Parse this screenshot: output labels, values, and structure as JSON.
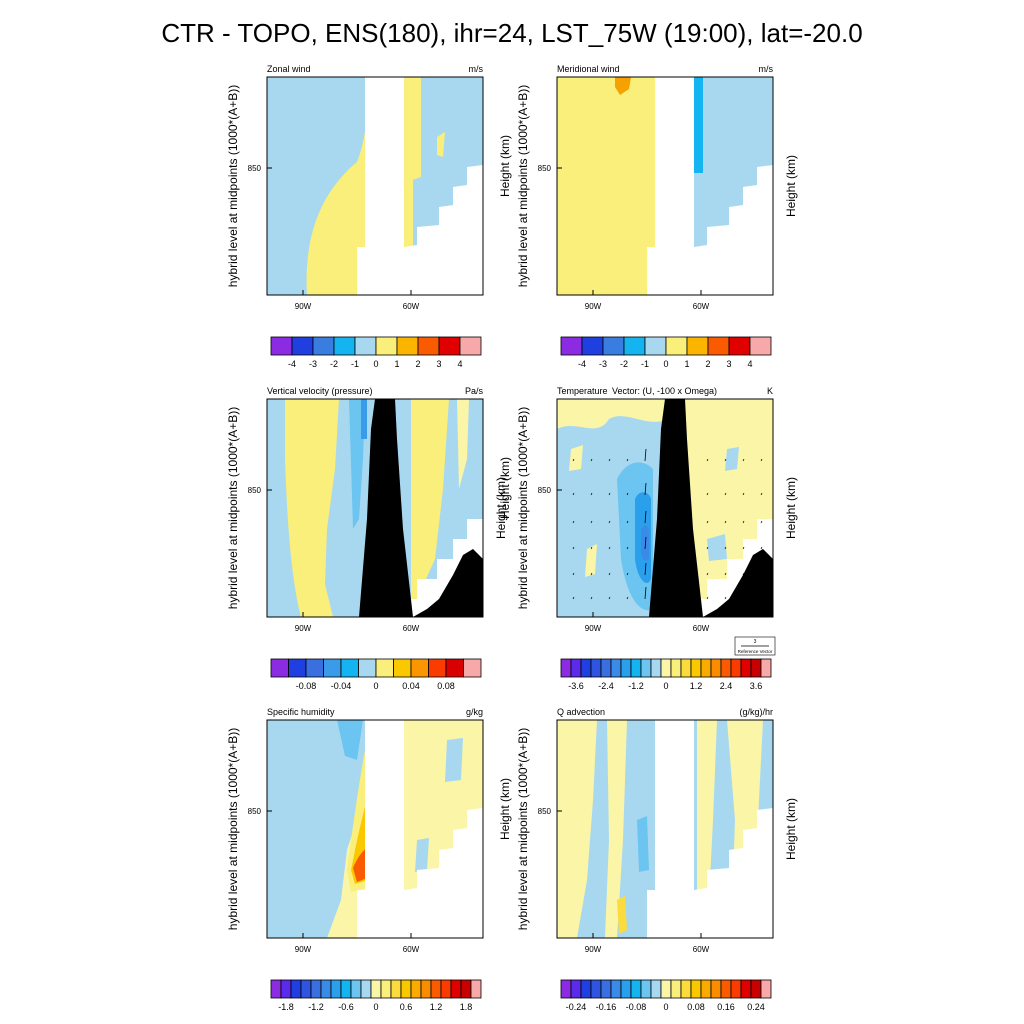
{
  "figure_title": "CTR - TOPO, ENS(180), ihr=24, LST_75W (19:00), lat=-20.0",
  "colors": {
    "light_blue": "#a8d8f0",
    "yellow": "#f9ef7a",
    "pale_yellow": "#fbf5a8",
    "topo_black": "#000000",
    "missing_white": "#ffffff"
  },
  "chart_data": [
    {
      "type": "heatmap",
      "title": "Zonal wind",
      "units": "m/s",
      "ylabel": "hybrid level at midpoints (1000*(A+B))",
      "ylabel_right": "",
      "y_tick_labels": [
        "850"
      ],
      "x_tick_labels": [
        "90W",
        "60W"
      ],
      "colorbar": {
        "fills": [
          "#8b2be2",
          "#1f3fe0",
          "#3a7de0",
          "#14b4f0",
          "#a8d8f0",
          "#f9ef7a",
          "#fbb400",
          "#fa5a00",
          "#e00000",
          "#f7a8a8"
        ],
        "labels": [
          "-4",
          "-3",
          "-2",
          "-1",
          "0",
          "1",
          "2",
          "3",
          "4"
        ]
      },
      "topography_fill": "white",
      "has_vectors": false
    },
    {
      "type": "heatmap",
      "title": "Meridional wind",
      "units": "m/s",
      "ylabel": "hybrid level at midpoints (1000*(A+B))",
      "ylabel_right": "Height (km)",
      "y_tick_labels": [
        "850"
      ],
      "x_tick_labels": [
        "90W",
        "60W"
      ],
      "colorbar": {
        "fills": [
          "#8b2be2",
          "#1f3fe0",
          "#3a7de0",
          "#14b4f0",
          "#a8d8f0",
          "#f9ef7a",
          "#fbb400",
          "#fa5a00",
          "#e00000",
          "#f7a8a8"
        ],
        "labels": [
          "-4",
          "-3",
          "-2",
          "-1",
          "0",
          "1",
          "2",
          "3",
          "4"
        ]
      },
      "topography_fill": "white",
      "has_vectors": false
    },
    {
      "type": "heatmap",
      "title": "Vertical velocity (pressure)",
      "units": "Pa/s",
      "ylabel": "hybrid level at midpoints (1000*(A+B))",
      "ylabel_right": "Height (km)",
      "y_tick_labels": [
        "850"
      ],
      "x_tick_labels": [
        "90W",
        "60W"
      ],
      "colorbar": {
        "fills": [
          "#8b2be2",
          "#1f3fe0",
          "#3a6fe0",
          "#3a9be8",
          "#14b4f0",
          "#a8d8f0",
          "#f9ef7a",
          "#fbc800",
          "#fb9600",
          "#fa3c00",
          "#d80000",
          "#f7a8a8"
        ],
        "labels": [
          "-0.08",
          "-0.04",
          "0",
          "0.04",
          "0.08"
        ]
      },
      "topography_fill": "black",
      "has_vectors": false
    },
    {
      "type": "heatmap",
      "title": "Temperature",
      "title2": "Vector: (U, -100 x Omega)",
      "units": "K",
      "ylabel": "hybrid level at midpoints (1000*(A+B))",
      "ylabel_right": "Height (km)",
      "y_tick_labels": [
        "850"
      ],
      "x_tick_labels": [
        "90W",
        "60W"
      ],
      "colorbar": {
        "fills": [
          "#8b2be2",
          "#5a2be8",
          "#1f3fe0",
          "#2f55e0",
          "#3a6fe0",
          "#3a8be8",
          "#2aa0ec",
          "#14b4f0",
          "#6cc4f0",
          "#a8d8f0",
          "#fbf5a8",
          "#f9ef7a",
          "#fbdc3c",
          "#fbc800",
          "#fbaa00",
          "#fb8c00",
          "#fa5a00",
          "#fa3c00",
          "#e00000",
          "#c80000",
          "#f7a8a8"
        ],
        "labels": [
          "-3.6",
          "-2.4",
          "-1.2",
          "0",
          "1.2",
          "2.4",
          "3.6"
        ]
      },
      "reference_vector": {
        "magnitude": "3",
        "label": "Reference Vector"
      },
      "topography_fill": "black",
      "has_vectors": true
    },
    {
      "type": "heatmap",
      "title": "Specific humidity",
      "units": "g/kg",
      "ylabel": "hybrid level at midpoints (1000*(A+B))",
      "ylabel_right": "",
      "y_tick_labels": [
        "850"
      ],
      "x_tick_labels": [
        "90W",
        "60W"
      ],
      "colorbar": {
        "fills": [
          "#8b2be2",
          "#5a2be8",
          "#1f3fe0",
          "#2f55e0",
          "#3a6fe0",
          "#3a8be8",
          "#2aa0ec",
          "#14b4f0",
          "#6cc4f0",
          "#a8d8f0",
          "#fbf5a8",
          "#f9ef7a",
          "#fbdc3c",
          "#fbc800",
          "#fbaa00",
          "#fb8c00",
          "#fa5a00",
          "#fa3c00",
          "#e00000",
          "#c80000",
          "#f7a8a8"
        ],
        "labels": [
          "-1.8",
          "-1.2",
          "-0.6",
          "0",
          "0.6",
          "1.2",
          "1.8"
        ]
      },
      "topography_fill": "white",
      "has_vectors": false
    },
    {
      "type": "heatmap",
      "title": "Q advection",
      "units": "(g/kg)/hr",
      "ylabel": "hybrid level at midpoints (1000*(A+B))",
      "ylabel_right": "Height (km)",
      "y_tick_labels": [
        "850"
      ],
      "x_tick_labels": [
        "90W",
        "60W"
      ],
      "colorbar": {
        "fills": [
          "#8b2be2",
          "#5a2be8",
          "#1f3fe0",
          "#2f55e0",
          "#3a6fe0",
          "#3a8be8",
          "#2aa0ec",
          "#14b4f0",
          "#6cc4f0",
          "#a8d8f0",
          "#fbf5a8",
          "#f9ef7a",
          "#fbdc3c",
          "#fbc800",
          "#fbaa00",
          "#fb8c00",
          "#fa5a00",
          "#fa3c00",
          "#e00000",
          "#c80000",
          "#f7a8a8"
        ],
        "labels": [
          "-0.24",
          "-0.16",
          "-0.08",
          "0",
          "0.08",
          "0.16",
          "0.24"
        ]
      },
      "topography_fill": "white",
      "has_vectors": false
    }
  ]
}
